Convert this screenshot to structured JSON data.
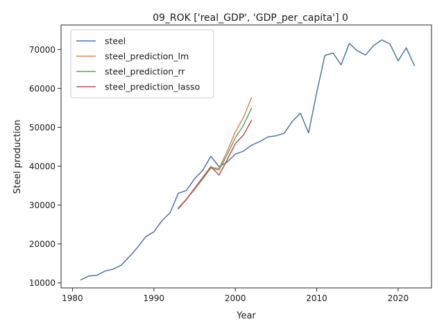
{
  "chart_data": {
    "type": "line",
    "title": "09_ROK ['real_GDP', 'GDP_per_capita'] 0",
    "xlabel": "Year",
    "ylabel": "Steel production",
    "xlim": [
      1978.6,
      2024.1
    ],
    "ylim": [
      8700,
      76300
    ],
    "xticks": [
      1980,
      1990,
      2000,
      2010,
      2020
    ],
    "yticks": [
      10000,
      20000,
      30000,
      40000,
      50000,
      60000,
      70000
    ],
    "grid": false,
    "legend_position": "top-left",
    "series": [
      {
        "name": "steel",
        "color": "#4c72b0",
        "x": [
          1981,
          1982,
          1983,
          1984,
          1985,
          1986,
          1987,
          1988,
          1989,
          1990,
          1991,
          1992,
          1993,
          1994,
          1995,
          1996,
          1997,
          1998,
          1999,
          2000,
          2001,
          2002,
          2003,
          2004,
          2005,
          2006,
          2007,
          2008,
          2009,
          2010,
          2011,
          2012,
          2013,
          2014,
          2015,
          2016,
          2017,
          2018,
          2019,
          2020,
          2021,
          2022
        ],
        "y": [
          10750,
          11760,
          11920,
          13030,
          13540,
          14550,
          16780,
          19120,
          21870,
          23120,
          26000,
          28050,
          33030,
          33750,
          36770,
          38900,
          42550,
          39900,
          41040,
          43110,
          43850,
          45390,
          46310,
          47520,
          47820,
          48450,
          51520,
          53620,
          48570,
          58910,
          68470,
          69070,
          66060,
          71540,
          69670,
          68580,
          71030,
          72460,
          71410,
          67080,
          70420,
          65850
        ]
      },
      {
        "name": "steel_prediction_lm",
        "color": "#dd8452",
        "x": [
          1993,
          1994,
          1995,
          1996,
          1997,
          1998,
          1999,
          2000,
          2001,
          2002
        ],
        "y": [
          29300,
          31500,
          34000,
          36800,
          39700,
          39400,
          43800,
          48800,
          52500,
          57600
        ]
      },
      {
        "name": "steel_prediction_rr",
        "color": "#55a868",
        "x": [
          1993,
          1994,
          1995,
          1996,
          1997,
          1998,
          1999,
          2000,
          2001,
          2002
        ],
        "y": [
          29200,
          31400,
          34200,
          36700,
          39500,
          39000,
          42900,
          47300,
          50500,
          54900
        ]
      },
      {
        "name": "steel_prediction_lasso",
        "color": "#c44e52",
        "x": [
          1993,
          1994,
          1995,
          1996,
          1997,
          1998,
          1999,
          2000,
          2001,
          2002
        ],
        "y": [
          29000,
          31500,
          34300,
          37100,
          39900,
          37700,
          41600,
          45800,
          48000,
          51800
        ]
      }
    ]
  }
}
